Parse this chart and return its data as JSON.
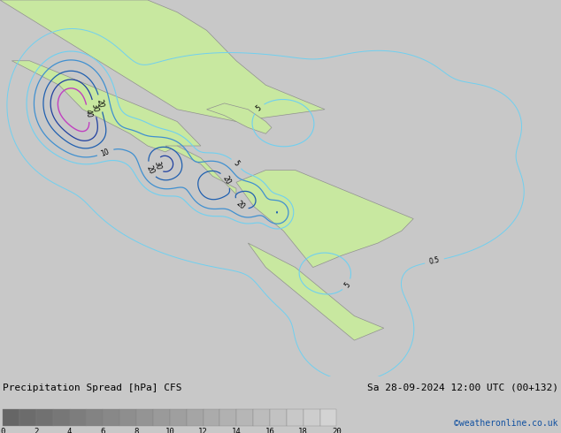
{
  "title_left": "Precipitation Spread [hPa] CFS",
  "title_right": "Sa 28-09-2024 12:00 UTC (00+132)",
  "credit": "©weatheronline.co.uk",
  "colorbar_ticks": [
    0,
    2,
    4,
    6,
    8,
    10,
    12,
    14,
    16,
    18,
    20
  ],
  "map_bg_land": "#c8e8a0",
  "map_bg_sea": "#e8eef4",
  "contour_color_05": "#70d0f0",
  "contour_color_5": "#70d0f0",
  "contour_color_10": "#4090d0",
  "contour_color_20": "#2060b0",
  "contour_color_30": "#2040a0",
  "contour_color_40": "#c040c0",
  "contour_color_purple": "#a030a0",
  "label_color_dark": "#000000",
  "bottom_bg": "#c8c8c8",
  "fig_width": 6.34,
  "fig_height": 4.9,
  "dpi": 100,
  "lon_min": -120,
  "lon_max": -25,
  "lat_min": -22,
  "lat_max": 40
}
